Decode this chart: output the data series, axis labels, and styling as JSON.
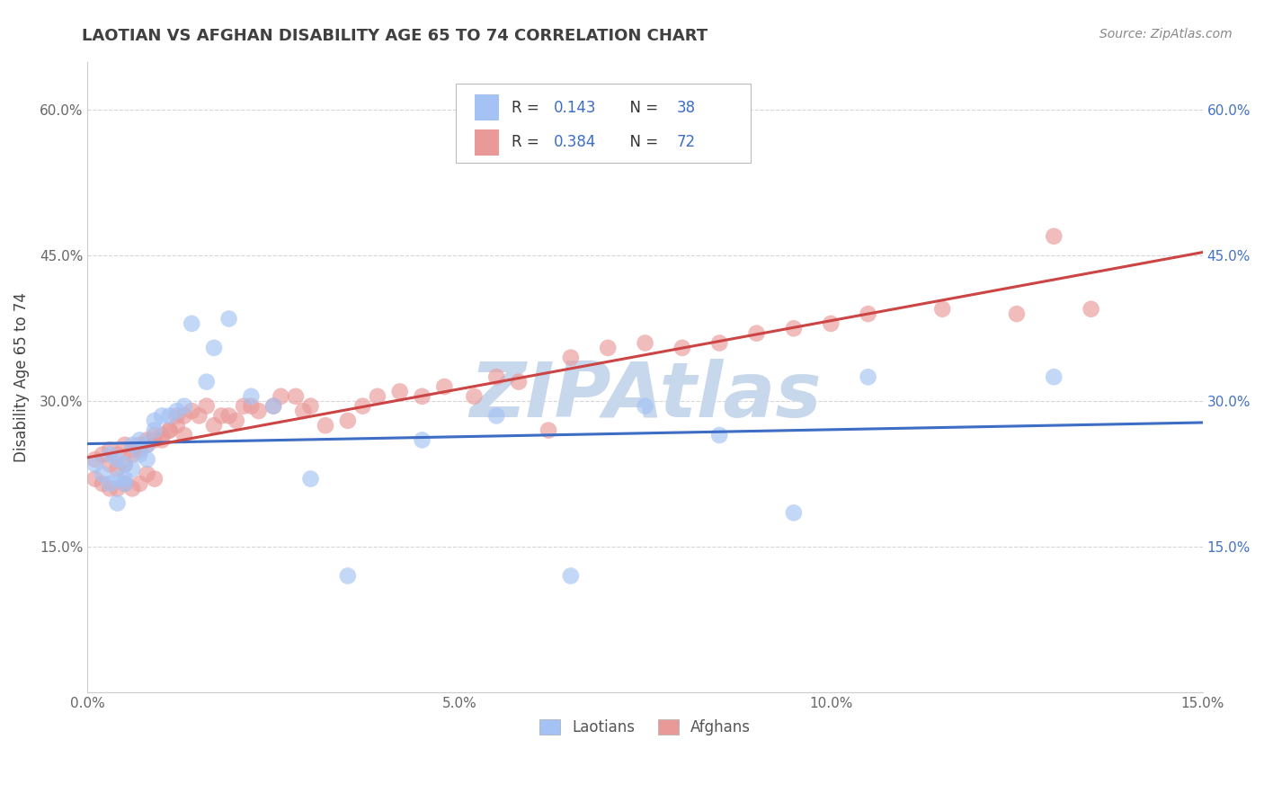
{
  "title": "LAOTIAN VS AFGHAN DISABILITY AGE 65 TO 74 CORRELATION CHART",
  "source_text": "Source: ZipAtlas.com",
  "ylabel": "Disability Age 65 to 74",
  "xlim": [
    0.0,
    0.15
  ],
  "ylim": [
    0.0,
    0.65
  ],
  "xticks": [
    0.0,
    0.05,
    0.1,
    0.15
  ],
  "xticklabels": [
    "0.0%",
    "5.0%",
    "10.0%",
    "15.0%"
  ],
  "yticks": [
    0.0,
    0.15,
    0.3,
    0.45,
    0.6
  ],
  "yticklabels": [
    "",
    "15.0%",
    "30.0%",
    "45.0%",
    "60.0%"
  ],
  "laotian_color": "#a4c2f4",
  "afghan_color": "#ea9999",
  "laotian_R": 0.143,
  "laotian_N": 38,
  "afghan_R": 0.384,
  "afghan_N": 72,
  "laotian_line_color": "#3d6dc4",
  "afghan_line_color": "#cc4444",
  "right_tick_color": "#4472c4",
  "background_color": "#ffffff",
  "grid_color": "#cccccc",
  "title_color": "#404040",
  "watermark_color": "#c8d8ec",
  "laotian_x": [
    0.001,
    0.002,
    0.003,
    0.003,
    0.004,
    0.004,
    0.004,
    0.005,
    0.005,
    0.005,
    0.006,
    0.006,
    0.007,
    0.007,
    0.008,
    0.008,
    0.009,
    0.009,
    0.01,
    0.011,
    0.012,
    0.013,
    0.014,
    0.016,
    0.017,
    0.019,
    0.022,
    0.025,
    0.03,
    0.035,
    0.045,
    0.055,
    0.065,
    0.075,
    0.085,
    0.095,
    0.105,
    0.13
  ],
  "laotian_y": [
    0.235,
    0.225,
    0.245,
    0.215,
    0.24,
    0.22,
    0.195,
    0.235,
    0.22,
    0.215,
    0.255,
    0.23,
    0.26,
    0.245,
    0.255,
    0.24,
    0.27,
    0.28,
    0.285,
    0.285,
    0.29,
    0.295,
    0.38,
    0.32,
    0.355,
    0.385,
    0.305,
    0.295,
    0.22,
    0.12,
    0.26,
    0.285,
    0.12,
    0.295,
    0.265,
    0.185,
    0.325,
    0.325
  ],
  "afghan_x": [
    0.001,
    0.001,
    0.002,
    0.002,
    0.003,
    0.003,
    0.003,
    0.004,
    0.004,
    0.004,
    0.005,
    0.005,
    0.005,
    0.006,
    0.006,
    0.006,
    0.007,
    0.007,
    0.007,
    0.008,
    0.008,
    0.008,
    0.009,
    0.009,
    0.009,
    0.01,
    0.01,
    0.011,
    0.011,
    0.012,
    0.012,
    0.013,
    0.013,
    0.014,
    0.015,
    0.016,
    0.017,
    0.018,
    0.019,
    0.02,
    0.021,
    0.022,
    0.023,
    0.025,
    0.026,
    0.028,
    0.029,
    0.03,
    0.032,
    0.035,
    0.037,
    0.039,
    0.042,
    0.045,
    0.048,
    0.052,
    0.055,
    0.058,
    0.062,
    0.065,
    0.07,
    0.075,
    0.08,
    0.085,
    0.09,
    0.095,
    0.1,
    0.105,
    0.115,
    0.125,
    0.13,
    0.135
  ],
  "afghan_y": [
    0.24,
    0.22,
    0.245,
    0.215,
    0.25,
    0.235,
    0.21,
    0.245,
    0.23,
    0.21,
    0.255,
    0.235,
    0.215,
    0.25,
    0.245,
    0.21,
    0.255,
    0.25,
    0.215,
    0.26,
    0.255,
    0.225,
    0.265,
    0.26,
    0.22,
    0.265,
    0.26,
    0.27,
    0.27,
    0.275,
    0.285,
    0.285,
    0.265,
    0.29,
    0.285,
    0.295,
    0.275,
    0.285,
    0.285,
    0.28,
    0.295,
    0.295,
    0.29,
    0.295,
    0.305,
    0.305,
    0.29,
    0.295,
    0.275,
    0.28,
    0.295,
    0.305,
    0.31,
    0.305,
    0.315,
    0.305,
    0.325,
    0.32,
    0.27,
    0.345,
    0.355,
    0.36,
    0.355,
    0.36,
    0.37,
    0.375,
    0.38,
    0.39,
    0.395,
    0.39,
    0.47,
    0.395
  ]
}
